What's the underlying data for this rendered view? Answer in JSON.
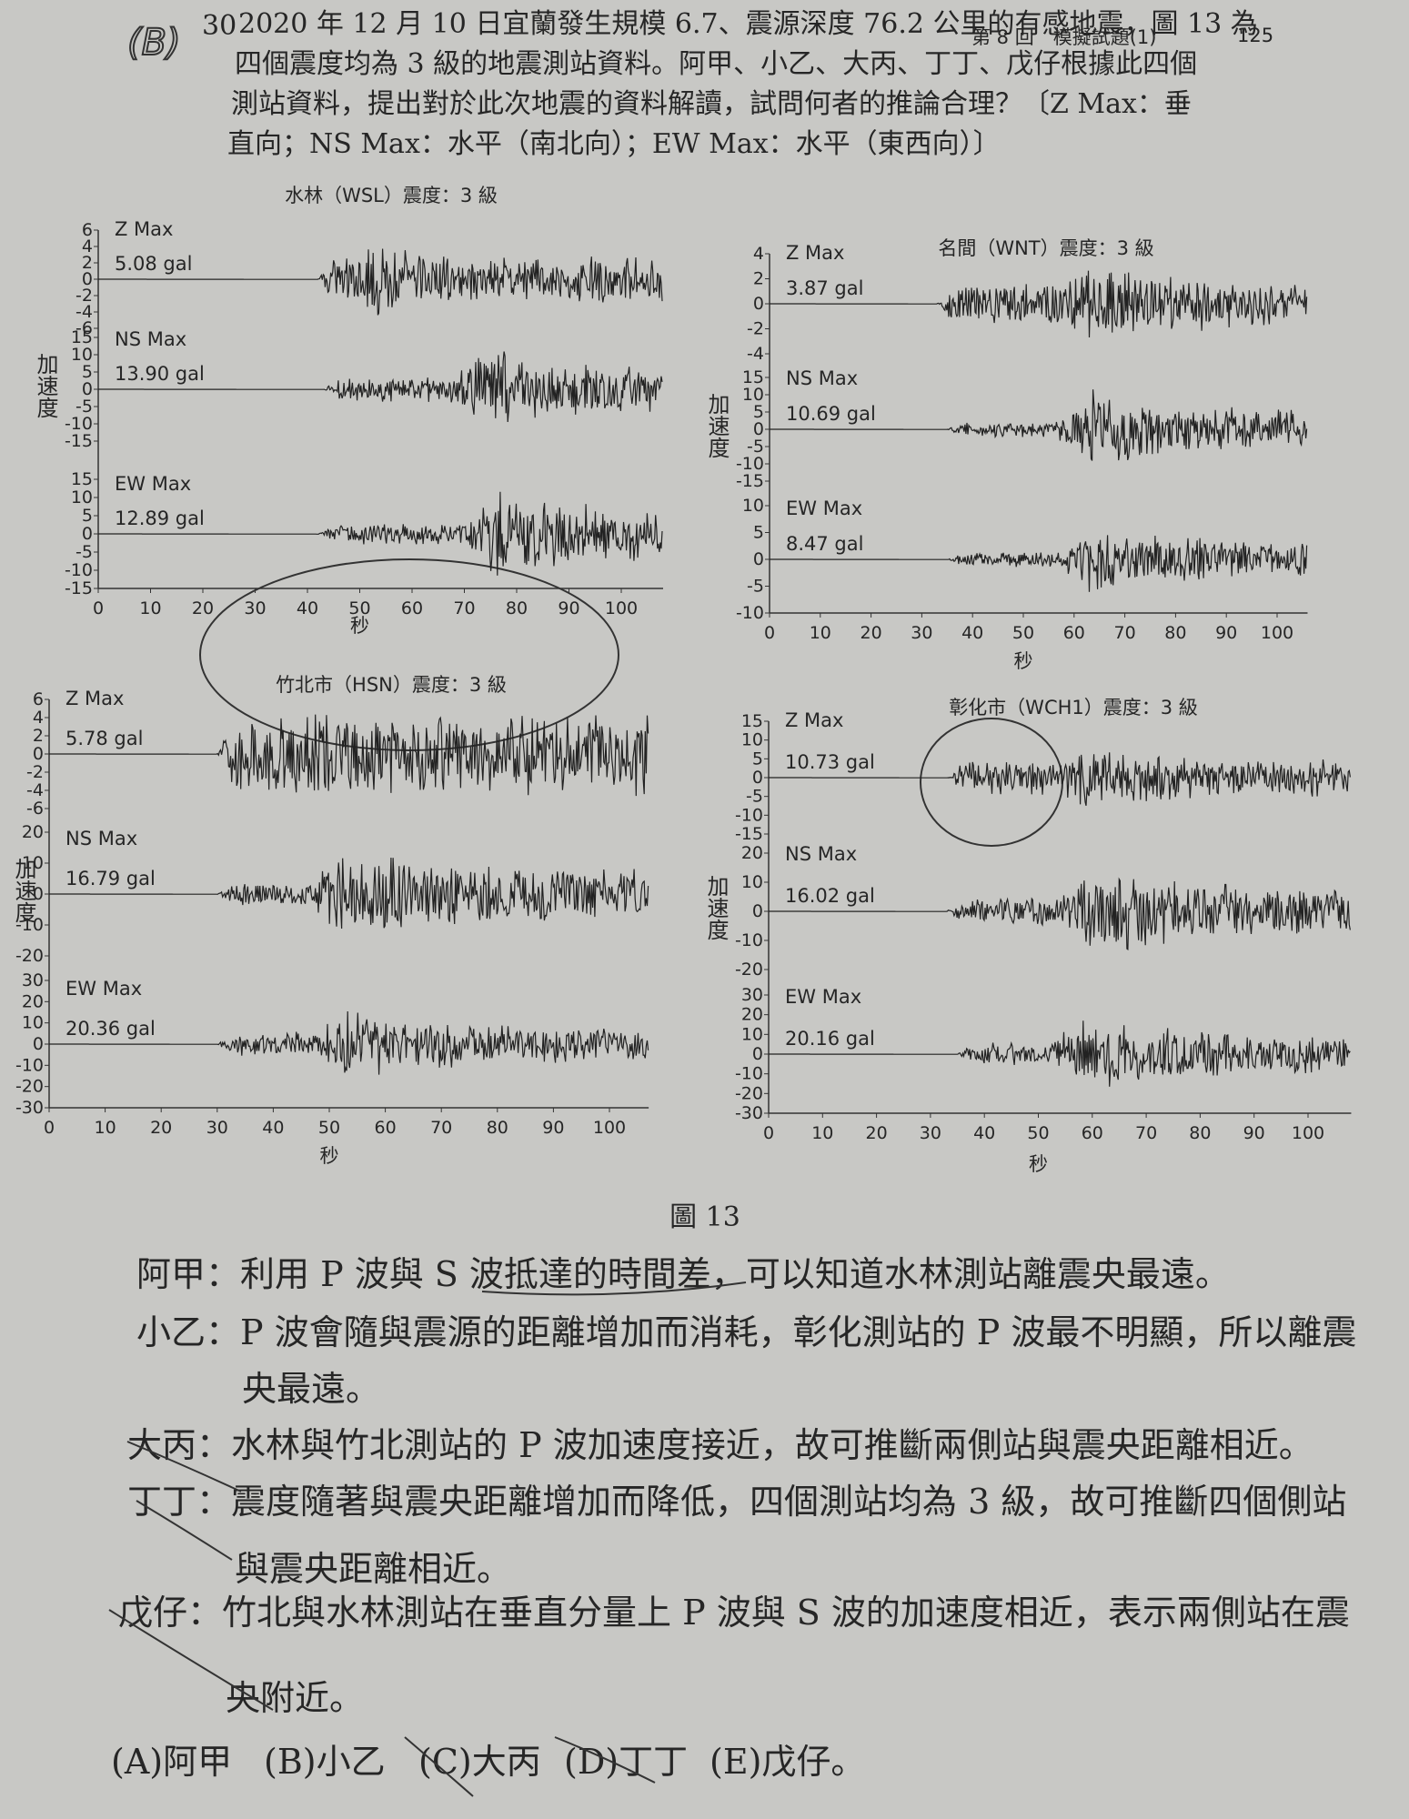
{
  "header": {
    "section": "第 8 回　模擬試題(1)",
    "page": "125"
  },
  "question": {
    "answer_mark": "(B)",
    "number": "30",
    "lines": [
      "2020 年 12 月 10 日宜蘭發生規模 6.7、震源深度 76.2 公里的有感地震，圖 13 為",
      "四個震度均為 3 級的地震測站資料。阿甲、小乙、大丙、丁丁、戊仔根據此四個",
      "測站資料，提出對於此次地震的資料解讀，試問何者的推論合理？〔Z Max：垂",
      "直向；NS Max：水平（南北向）；EW Max：水平（東西向）〕"
    ]
  },
  "figure": {
    "caption": "圖 13",
    "y_axis_label": "加速度",
    "x_axis_label": "秒",
    "xticks": [
      0,
      10,
      20,
      30,
      40,
      50,
      60,
      70,
      80,
      90,
      100
    ],
    "stations": [
      {
        "title": "水林（WSL）震度：3 級",
        "components": [
          {
            "label": "Z Max",
            "max": "5.08 gal",
            "yticks": [
              6,
              4,
              2,
              0,
              -2,
              -4,
              -6
            ]
          },
          {
            "label": "NS Max",
            "max": "13.90 gal",
            "yticks": [
              15,
              10,
              5,
              0,
              -5,
              -10,
              -15
            ]
          },
          {
            "label": "EW Max",
            "max": "12.89 gal",
            "yticks": [
              15,
              10,
              5,
              0,
              -5,
              -10,
              -15
            ]
          }
        ]
      },
      {
        "title": "名間（WNT）震度：3 級",
        "components": [
          {
            "label": "Z Max",
            "max": "3.87 gal",
            "yticks": [
              4,
              2,
              0,
              -2,
              -4
            ]
          },
          {
            "label": "NS Max",
            "max": "10.69 gal",
            "yticks": [
              15,
              10,
              5,
              0,
              -5,
              -10,
              -15
            ]
          },
          {
            "label": "EW Max",
            "max": "8.47 gal",
            "yticks": [
              10,
              5,
              0,
              -5,
              -10
            ]
          }
        ]
      },
      {
        "title": "竹北市（HSN）震度：3 級",
        "components": [
          {
            "label": "Z Max",
            "max": "5.78 gal",
            "yticks": [
              6,
              4,
              2,
              0,
              -2,
              -4,
              -6
            ]
          },
          {
            "label": "NS Max",
            "max": "16.79 gal",
            "yticks": [
              20,
              10,
              0,
              -10,
              -20
            ]
          },
          {
            "label": "EW Max",
            "max": "20.36 gal",
            "yticks": [
              30,
              20,
              10,
              0,
              -10,
              -20,
              -30
            ]
          }
        ]
      },
      {
        "title": "彰化市（WCH1）震度：3 級",
        "components": [
          {
            "label": "Z Max",
            "max": "10.73 gal",
            "yticks": [
              15,
              10,
              5,
              0,
              -5,
              -10,
              -15
            ]
          },
          {
            "label": "NS Max",
            "max": "16.02 gal",
            "yticks": [
              20,
              10,
              0,
              -10,
              -20
            ]
          },
          {
            "label": "EW Max",
            "max": "20.16 gal",
            "yticks": [
              30,
              20,
              10,
              0,
              -10,
              -20,
              -30
            ]
          }
        ]
      }
    ]
  },
  "statements": [
    {
      "lines": [
        "阿甲：利用 P 波與 S 波抵達的時間差，可以知道水林測站離震央最遠。"
      ]
    },
    {
      "lines": [
        "小乙：P 波會隨與震源的距離增加而消耗，彰化測站的 P 波最不明顯，所以離震",
        "央最遠。"
      ]
    },
    {
      "lines": [
        "大丙：水林與竹北測站的 P 波加速度接近，故可推斷兩側站與震央距離相近。"
      ]
    },
    {
      "lines": [
        "丁丁：震度隨著與震央距離增加而降低，四個測站均為 3 級，故可推斷四個側站",
        "與震央距離相近。"
      ]
    },
    {
      "lines": [
        "戊仔：竹北與水林測站在垂直分量上 P 波與 S 波的加速度相近，表示兩側站在震",
        "央附近。"
      ]
    }
  ],
  "options": [
    "(A)阿甲",
    "(B)小乙",
    "(C)大丙",
    "(D)丁丁",
    "(E)戊仔。"
  ]
}
